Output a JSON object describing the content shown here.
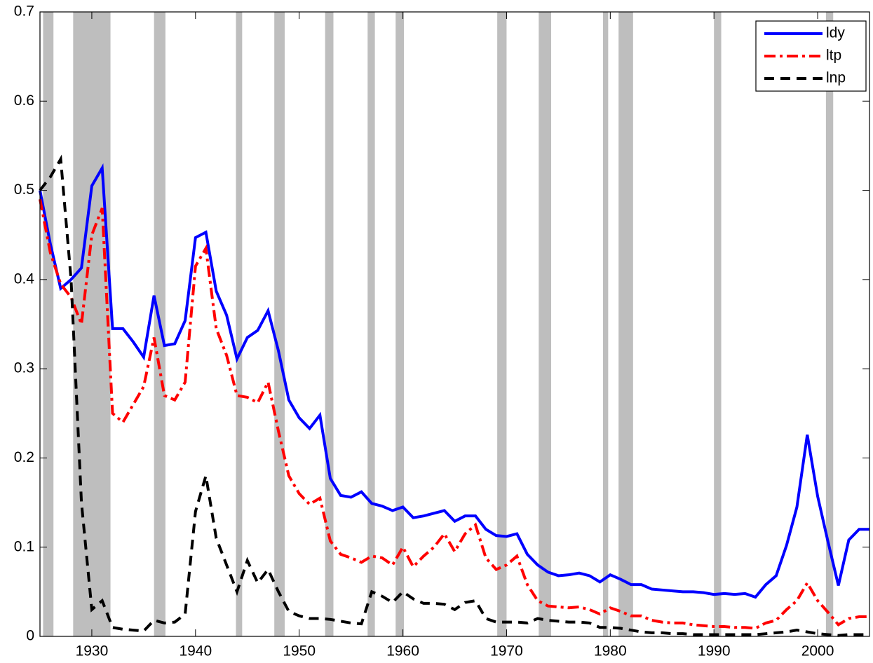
{
  "chart_data": {
    "type": "line",
    "x": [
      1925,
      1926,
      1927,
      1928,
      1929,
      1930,
      1931,
      1932,
      1933,
      1934,
      1935,
      1936,
      1937,
      1938,
      1939,
      1940,
      1941,
      1942,
      1943,
      1944,
      1945,
      1946,
      1947,
      1948,
      1949,
      1950,
      1951,
      1952,
      1953,
      1954,
      1955,
      1956,
      1957,
      1958,
      1959,
      1960,
      1961,
      1962,
      1963,
      1964,
      1965,
      1966,
      1967,
      1968,
      1969,
      1970,
      1971,
      1972,
      1973,
      1974,
      1975,
      1976,
      1977,
      1978,
      1979,
      1980,
      1981,
      1982,
      1983,
      1984,
      1985,
      1986,
      1987,
      1988,
      1989,
      1990,
      1991,
      1992,
      1993,
      1994,
      1995,
      1996,
      1997,
      1998,
      1999,
      2000,
      2001,
      2002,
      2003,
      2004,
      2005
    ],
    "series": [
      {
        "name": "ldy",
        "color": "#0000ff",
        "dash": "solid",
        "values": [
          0.5,
          0.44,
          0.39,
          0.4,
          0.413,
          0.505,
          0.525,
          0.345,
          0.345,
          0.33,
          0.313,
          0.382,
          0.326,
          0.328,
          0.354,
          0.447,
          0.453,
          0.387,
          0.36,
          0.311,
          0.335,
          0.343,
          0.365,
          0.32,
          0.265,
          0.245,
          0.233,
          0.248,
          0.177,
          0.158,
          0.156,
          0.162,
          0.149,
          0.146,
          0.141,
          0.145,
          0.133,
          0.135,
          0.138,
          0.141,
          0.129,
          0.135,
          0.135,
          0.12,
          0.113,
          0.112,
          0.115,
          0.092,
          0.08,
          0.072,
          0.068,
          0.069,
          0.071,
          0.068,
          0.061,
          0.069,
          0.064,
          0.058,
          0.058,
          0.053,
          0.052,
          0.051,
          0.05,
          0.05,
          0.049,
          0.047,
          0.048,
          0.047,
          0.048,
          0.044,
          0.058,
          0.068,
          0.102,
          0.145,
          0.226,
          0.157,
          0.106,
          0.057,
          0.108,
          0.12,
          0.12
        ]
      },
      {
        "name": "ltp",
        "color": "#ff0000",
        "dash": "dashdot",
        "values": [
          0.49,
          0.43,
          0.395,
          0.38,
          0.35,
          0.45,
          0.48,
          0.25,
          0.24,
          0.26,
          0.28,
          0.335,
          0.27,
          0.265,
          0.285,
          0.415,
          0.435,
          0.345,
          0.315,
          0.27,
          0.268,
          0.262,
          0.285,
          0.23,
          0.18,
          0.16,
          0.148,
          0.155,
          0.107,
          0.092,
          0.088,
          0.083,
          0.09,
          0.088,
          0.08,
          0.1,
          0.078,
          0.09,
          0.1,
          0.115,
          0.095,
          0.115,
          0.125,
          0.088,
          0.075,
          0.08,
          0.09,
          0.058,
          0.04,
          0.034,
          0.033,
          0.032,
          0.033,
          0.03,
          0.025,
          0.032,
          0.028,
          0.023,
          0.023,
          0.018,
          0.016,
          0.015,
          0.015,
          0.013,
          0.012,
          0.011,
          0.011,
          0.01,
          0.01,
          0.009,
          0.015,
          0.018,
          0.03,
          0.04,
          0.06,
          0.04,
          0.027,
          0.013,
          0.02,
          0.022,
          0.022
        ]
      },
      {
        "name": "lnp",
        "color": "#000000",
        "dash": "dashed",
        "values": [
          0.5,
          0.515,
          0.535,
          0.4,
          0.15,
          0.03,
          0.04,
          0.01,
          0.008,
          0.007,
          0.006,
          0.018,
          0.015,
          0.016,
          0.025,
          0.14,
          0.18,
          0.11,
          0.08,
          0.05,
          0.085,
          0.06,
          0.075,
          0.05,
          0.028,
          0.023,
          0.02,
          0.02,
          0.019,
          0.017,
          0.015,
          0.014,
          0.05,
          0.045,
          0.038,
          0.05,
          0.042,
          0.037,
          0.037,
          0.036,
          0.03,
          0.038,
          0.04,
          0.02,
          0.016,
          0.016,
          0.016,
          0.015,
          0.02,
          0.018,
          0.017,
          0.016,
          0.016,
          0.015,
          0.01,
          0.01,
          0.009,
          0.007,
          0.005,
          0.004,
          0.004,
          0.003,
          0.003,
          0.002,
          0.002,
          0.002,
          0.002,
          0.002,
          0.002,
          0.002,
          0.003,
          0.004,
          0.005,
          0.007,
          0.005,
          0.003,
          0.002,
          0.001,
          0.002,
          0.002,
          0.002
        ]
      }
    ],
    "shading": [
      [
        1925.3,
        1926.3
      ],
      [
        1928.2,
        1931.8
      ],
      [
        1936.0,
        1937.1
      ],
      [
        1943.9,
        1944.5
      ],
      [
        1947.6,
        1948.6
      ],
      [
        1952.5,
        1953.3
      ],
      [
        1956.6,
        1957.3
      ],
      [
        1959.3,
        1960.1
      ],
      [
        1969.1,
        1970.0
      ],
      [
        1973.1,
        1974.3
      ],
      [
        1979.3,
        1979.8
      ],
      [
        1980.8,
        1982.2
      ],
      [
        1990.0,
        1990.7
      ],
      [
        2000.8,
        2001.5
      ]
    ],
    "shading_color": "#bebebe",
    "xlim": [
      1925,
      2005
    ],
    "xticks": [
      1930,
      1940,
      1950,
      1960,
      1970,
      1980,
      1990,
      2000
    ],
    "ylim": [
      0,
      0.7
    ],
    "yticks": [
      0,
      0.1,
      0.2,
      0.3,
      0.4,
      0.5,
      0.6,
      0.7
    ],
    "legend": "top-right"
  }
}
